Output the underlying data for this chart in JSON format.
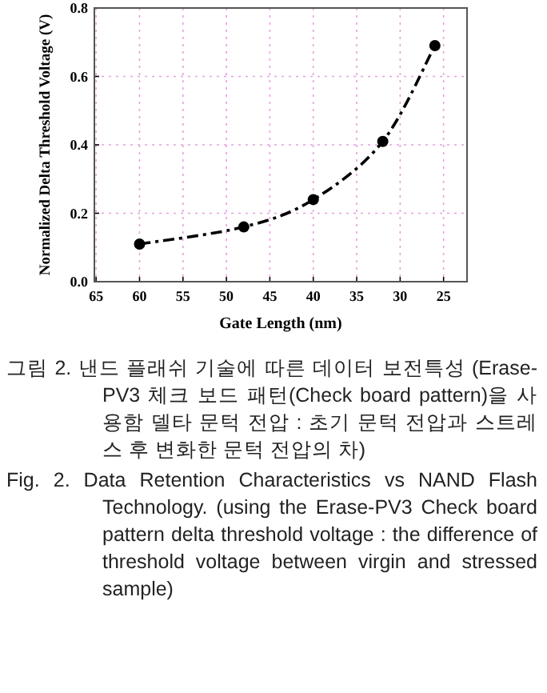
{
  "chart_data": {
    "type": "line",
    "xlabel": "Gate Length (nm)",
    "ylabel": "Normalized Delta Threshold Voltage (V)",
    "x": [
      60,
      48,
      40,
      32,
      26
    ],
    "series": [
      {
        "color": "#000000",
        "values": [
          0.11,
          0.16,
          0.24,
          0.41,
          0.69
        ]
      }
    ],
    "xlim": [
      65.2,
      22.3
    ],
    "ylim": [
      0,
      0.8
    ],
    "xticks": [
      65,
      60,
      55,
      50,
      45,
      40,
      35,
      30,
      25
    ],
    "yticks": [
      {
        "value": 0,
        "label": "0.0"
      },
      {
        "value": 0.2,
        "label": "0.2"
      },
      {
        "value": 0.4,
        "label": "0.4"
      },
      {
        "value": 0.6,
        "label": "0.6"
      },
      {
        "value": 0.8,
        "label": "0.8"
      }
    ],
    "grid": true,
    "marker": "circle",
    "line_style": "dashed",
    "annotations": [
      "그림 2. 낸드 플래쉬 기술에 따른 데이터 보전특성 (Erase-PV3 체크 보드 패턴(Check board pattern)을 사용함 델타 문턱 전압 : 초기 문턱 전압과 스트레스 후 변화한 문턱 전압의 차)",
      "Fig. 2. Data Retention Characteristics vs NAND Flash Technology. (using the Erase-PV3 Check board pattern delta threshold voltage : the difference of threshold voltage between virgin and stressed sample)"
    ]
  }
}
